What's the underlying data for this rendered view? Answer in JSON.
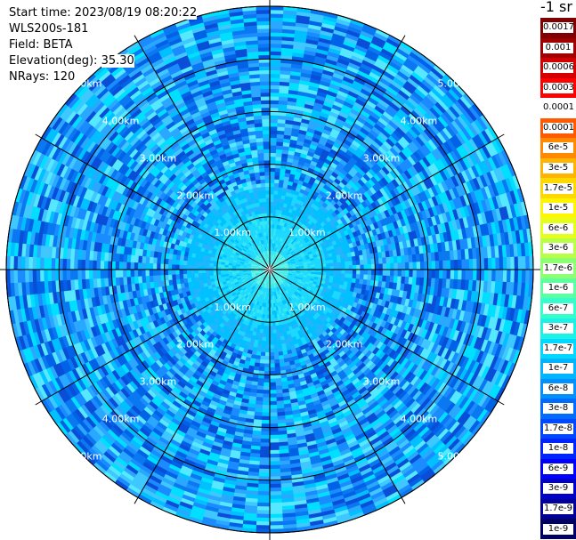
{
  "info": {
    "start_label": "Start time:",
    "start_value": "2023/08/19 08:20:22",
    "station": "WLS200s-181",
    "field_label": "Field:",
    "field_value": "BETA",
    "elevation_label": "Elevation(deg):",
    "elevation_value": "35.30",
    "nrays_label": "NRays:",
    "nrays_value": "120"
  },
  "plot": {
    "range_rings_km": [
      1,
      2,
      3,
      4,
      5
    ],
    "ring_label_suffix": "km",
    "spoke_count": 12,
    "outer_range_km": 5.0
  },
  "legend": {
    "unit": "-1 sr",
    "entries": [
      {
        "label": "0.0017",
        "color": "#7f0000"
      },
      {
        "label": "0.001",
        "color": "#a00000"
      },
      {
        "label": "0.0006",
        "color": "#d40000"
      },
      {
        "label": "0.0003",
        "color": "#ff0000"
      },
      {
        "label": "0.00017",
        "color": "#ffffff"
      },
      {
        "label": "0.0001",
        "color": "#ff5a00"
      },
      {
        "label": "6e-5",
        "color": "#ff8a00"
      },
      {
        "label": "3e-5",
        "color": "#ffb400"
      },
      {
        "label": "1.7e-5",
        "color": "#ffd800"
      },
      {
        "label": "1e-5",
        "color": "#fff500"
      },
      {
        "label": "6e-6",
        "color": "#e4ff1a"
      },
      {
        "label": "3e-6",
        "color": "#b8ff47"
      },
      {
        "label": "1.7e-6",
        "color": "#8cff73"
      },
      {
        "label": "1e-6",
        "color": "#5cffa2"
      },
      {
        "label": "6e-7",
        "color": "#33ffcc"
      },
      {
        "label": "3e-7",
        "color": "#1af2e6"
      },
      {
        "label": "1.7e-7",
        "color": "#00d8ff"
      },
      {
        "label": "1e-7",
        "color": "#00b4ff"
      },
      {
        "label": "6e-8",
        "color": "#0090ff"
      },
      {
        "label": "3e-8",
        "color": "#006cff"
      },
      {
        "label": "1.7e-8",
        "color": "#0048ff"
      },
      {
        "label": "1e-8",
        "color": "#0024ff"
      },
      {
        "label": "6e-9",
        "color": "#0000ff"
      },
      {
        "label": "3e-9",
        "color": "#0000c8"
      },
      {
        "label": "1.7e-9",
        "color": "#000096"
      },
      {
        "label": "1e-9",
        "color": "#000064"
      }
    ]
  },
  "colors": {
    "background": "#ffffff",
    "grid_line": "#000000",
    "ring_label": "#ffffff"
  }
}
